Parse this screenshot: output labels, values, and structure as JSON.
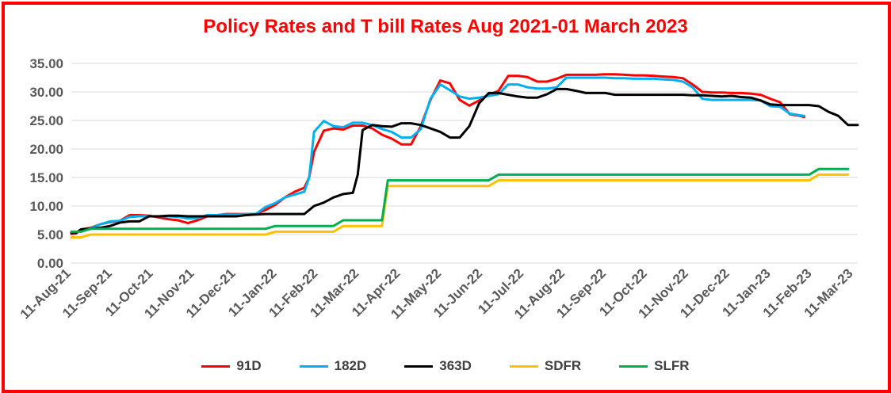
{
  "chart_data": {
    "type": "line",
    "title": "Policy Rates and T bill Rates Aug 2021-01 March 2023",
    "xlabel": "",
    "ylabel": "",
    "ylim": [
      0,
      35
    ],
    "yticks": [
      "0.00",
      "5.00",
      "10.00",
      "15.00",
      "20.00",
      "25.00",
      "30.00",
      "35.00"
    ],
    "grid": "horizontal",
    "legend_position": "bottom",
    "x_tick_labels": [
      "11-Aug-21",
      "11-Sep-21",
      "11-Oct-21",
      "11-Nov-21",
      "11-Dec-21",
      "11-Jan-22",
      "11-Feb-22",
      "11-Mar-22",
      "11-Apr-22",
      "11-May-22",
      "11-Jun-22",
      "11-Jul-22",
      "11-Aug-22",
      "11-Sep-22",
      "11-Oct-22",
      "11-Nov-22",
      "11-Dec-22",
      "11-Jan-23",
      "11-Feb-23",
      "11-Mar-23"
    ],
    "series": [
      {
        "name": "91D",
        "color": "#ff0000",
        "points": [
          [
            0,
            5.1
          ],
          [
            0.5,
            5.2
          ],
          [
            1,
            5.9
          ],
          [
            2,
            6.2
          ],
          [
            3,
            6.8
          ],
          [
            4,
            7.2
          ],
          [
            5,
            7.4
          ],
          [
            6,
            8.4
          ],
          [
            7,
            8.4
          ],
          [
            8,
            8.3
          ],
          [
            9,
            8.0
          ],
          [
            10,
            7.7
          ],
          [
            11,
            7.5
          ],
          [
            12,
            7.0
          ],
          [
            13,
            7.5
          ],
          [
            14,
            8.2
          ],
          [
            15,
            8.4
          ],
          [
            16,
            8.6
          ],
          [
            17,
            8.6
          ],
          [
            18,
            8.6
          ],
          [
            19,
            8.6
          ],
          [
            20,
            9.3
          ],
          [
            21,
            10.2
          ],
          [
            22,
            11.5
          ],
          [
            23,
            12.5
          ],
          [
            24,
            13.2
          ],
          [
            24.5,
            15.0
          ],
          [
            25,
            19.5
          ],
          [
            26,
            23.2
          ],
          [
            27,
            23.6
          ],
          [
            28,
            23.4
          ],
          [
            29,
            24.1
          ],
          [
            30,
            24.1
          ],
          [
            31,
            23.6
          ],
          [
            32,
            22.5
          ],
          [
            33,
            21.8
          ],
          [
            34,
            20.8
          ],
          [
            35,
            20.8
          ],
          [
            36,
            24.0
          ],
          [
            37,
            28.6
          ],
          [
            38,
            32.0
          ],
          [
            39,
            31.5
          ],
          [
            40,
            28.6
          ],
          [
            41,
            27.6
          ],
          [
            42,
            28.5
          ],
          [
            43,
            29.5
          ],
          [
            44,
            30.2
          ],
          [
            45,
            32.8
          ],
          [
            46,
            32.8
          ],
          [
            47,
            32.6
          ],
          [
            48,
            31.8
          ],
          [
            49,
            31.8
          ],
          [
            50,
            32.3
          ],
          [
            51,
            33.0
          ],
          [
            52,
            33.0
          ],
          [
            53,
            33.0
          ],
          [
            54,
            33.0
          ],
          [
            55,
            33.1
          ],
          [
            56,
            33.1
          ],
          [
            57,
            33.0
          ],
          [
            58,
            32.9
          ],
          [
            59,
            32.9
          ],
          [
            60,
            32.8
          ],
          [
            61,
            32.7
          ],
          [
            62,
            32.6
          ],
          [
            63,
            32.4
          ],
          [
            64,
            31.3
          ],
          [
            65,
            30.0
          ],
          [
            66,
            29.9
          ],
          [
            67,
            29.9
          ],
          [
            68,
            29.8
          ],
          [
            69,
            29.8
          ],
          [
            70,
            29.7
          ],
          [
            71,
            29.5
          ],
          [
            72,
            28.8
          ],
          [
            73,
            28.2
          ],
          [
            74,
            26.1
          ],
          [
            75,
            25.8
          ],
          [
            75.5,
            25.6
          ]
        ]
      },
      {
        "name": "182D",
        "color": "#00b0f0",
        "points": [
          [
            0,
            5.3
          ],
          [
            0.5,
            5.3
          ],
          [
            1,
            5.9
          ],
          [
            2,
            6.1
          ],
          [
            3,
            6.8
          ],
          [
            4,
            7.3
          ],
          [
            5,
            7.4
          ],
          [
            6,
            8.1
          ],
          [
            7,
            8.2
          ],
          [
            8,
            8.2
          ],
          [
            9,
            8.2
          ],
          [
            10,
            8.2
          ],
          [
            11,
            8.1
          ],
          [
            12,
            7.8
          ],
          [
            13,
            7.9
          ],
          [
            14,
            8.4
          ],
          [
            15,
            8.4
          ],
          [
            16,
            8.5
          ],
          [
            17,
            8.5
          ],
          [
            18,
            8.6
          ],
          [
            19,
            8.6
          ],
          [
            20,
            9.8
          ],
          [
            21,
            10.5
          ],
          [
            22,
            11.5
          ],
          [
            23,
            12.0
          ],
          [
            24,
            12.5
          ],
          [
            24.5,
            15.0
          ],
          [
            25,
            23.0
          ],
          [
            26,
            24.9
          ],
          [
            27,
            24.0
          ],
          [
            28,
            23.8
          ],
          [
            29,
            24.6
          ],
          [
            30,
            24.6
          ],
          [
            31,
            24.2
          ],
          [
            32,
            23.5
          ],
          [
            33,
            23.0
          ],
          [
            34,
            22.0
          ],
          [
            35,
            22.0
          ],
          [
            36,
            23.5
          ],
          [
            37,
            28.8
          ],
          [
            38,
            31.3
          ],
          [
            39,
            30.3
          ],
          [
            40,
            29.2
          ],
          [
            41,
            28.8
          ],
          [
            42,
            29.0
          ],
          [
            43,
            29.3
          ],
          [
            44,
            29.6
          ],
          [
            45,
            31.3
          ],
          [
            46,
            31.3
          ],
          [
            47,
            30.8
          ],
          [
            48,
            30.6
          ],
          [
            49,
            30.6
          ],
          [
            50,
            30.8
          ],
          [
            51,
            32.5
          ],
          [
            52,
            32.5
          ],
          [
            53,
            32.5
          ],
          [
            54,
            32.5
          ],
          [
            55,
            32.5
          ],
          [
            56,
            32.4
          ],
          [
            57,
            32.4
          ],
          [
            58,
            32.3
          ],
          [
            59,
            32.3
          ],
          [
            60,
            32.3
          ],
          [
            61,
            32.2
          ],
          [
            62,
            32.1
          ],
          [
            63,
            31.8
          ],
          [
            64,
            30.8
          ],
          [
            65,
            28.8
          ],
          [
            66,
            28.6
          ],
          [
            67,
            28.6
          ],
          [
            68,
            28.6
          ],
          [
            69,
            28.6
          ],
          [
            70,
            28.6
          ],
          [
            71,
            28.5
          ],
          [
            72,
            27.5
          ],
          [
            73,
            27.4
          ],
          [
            74,
            26.2
          ],
          [
            75,
            25.9
          ],
          [
            75.5,
            25.8
          ]
        ]
      },
      {
        "name": "363D",
        "color": "#000000",
        "points": [
          [
            0,
            5.3
          ],
          [
            0.5,
            5.3
          ],
          [
            1,
            5.9
          ],
          [
            2,
            6.0
          ],
          [
            3,
            6.2
          ],
          [
            4,
            6.5
          ],
          [
            5,
            7.1
          ],
          [
            6,
            7.3
          ],
          [
            7,
            7.3
          ],
          [
            8,
            8.2
          ],
          [
            9,
            8.2
          ],
          [
            10,
            8.3
          ],
          [
            11,
            8.3
          ],
          [
            12,
            8.2
          ],
          [
            13,
            8.2
          ],
          [
            14,
            8.2
          ],
          [
            15,
            8.2
          ],
          [
            16,
            8.2
          ],
          [
            17,
            8.2
          ],
          [
            18,
            8.4
          ],
          [
            19,
            8.5
          ],
          [
            20,
            8.6
          ],
          [
            21,
            8.6
          ],
          [
            22,
            8.6
          ],
          [
            23,
            8.6
          ],
          [
            24,
            8.6
          ],
          [
            25,
            10.0
          ],
          [
            26,
            10.6
          ],
          [
            27,
            11.5
          ],
          [
            28,
            12.1
          ],
          [
            29,
            12.3
          ],
          [
            29.5,
            15.5
          ],
          [
            30,
            23.3
          ],
          [
            31,
            24.2
          ],
          [
            32,
            24.0
          ],
          [
            33,
            23.9
          ],
          [
            34,
            24.5
          ],
          [
            35,
            24.5
          ],
          [
            36,
            24.2
          ],
          [
            37,
            23.6
          ],
          [
            38,
            23.0
          ],
          [
            39,
            22.0
          ],
          [
            40,
            22.0
          ],
          [
            41,
            24.0
          ],
          [
            42,
            28.0
          ],
          [
            43,
            29.8
          ],
          [
            44,
            29.8
          ],
          [
            45,
            29.5
          ],
          [
            46,
            29.2
          ],
          [
            47,
            29.0
          ],
          [
            48,
            29.0
          ],
          [
            49,
            29.6
          ],
          [
            50,
            30.5
          ],
          [
            51,
            30.5
          ],
          [
            52,
            30.2
          ],
          [
            53,
            29.8
          ],
          [
            54,
            29.8
          ],
          [
            55,
            29.8
          ],
          [
            56,
            29.5
          ],
          [
            57,
            29.5
          ],
          [
            58,
            29.5
          ],
          [
            59,
            29.5
          ],
          [
            60,
            29.5
          ],
          [
            61,
            29.5
          ],
          [
            62,
            29.5
          ],
          [
            63,
            29.5
          ],
          [
            64,
            29.4
          ],
          [
            65,
            29.4
          ],
          [
            66,
            29.3
          ],
          [
            67,
            29.2
          ],
          [
            68,
            29.3
          ],
          [
            69,
            29.1
          ],
          [
            70,
            29.0
          ],
          [
            71,
            28.5
          ],
          [
            72,
            27.8
          ],
          [
            73,
            27.7
          ],
          [
            74,
            27.7
          ],
          [
            75,
            27.7
          ],
          [
            76,
            27.7
          ],
          [
            77,
            27.5
          ],
          [
            78,
            26.5
          ],
          [
            79,
            25.8
          ],
          [
            80,
            24.2
          ],
          [
            81,
            24.2
          ]
        ]
      },
      {
        "name": "SDFR",
        "color": "#ffc000",
        "points": [
          [
            0,
            4.5
          ],
          [
            1,
            4.5
          ],
          [
            2,
            5.0
          ],
          [
            20,
            5.0
          ],
          [
            21,
            5.5
          ],
          [
            27,
            5.5
          ],
          [
            28,
            6.5
          ],
          [
            32,
            6.5
          ],
          [
            32.6,
            13.5
          ],
          [
            43,
            13.5
          ],
          [
            44,
            14.5
          ],
          [
            76,
            14.5
          ],
          [
            77,
            15.5
          ],
          [
            80,
            15.5
          ]
        ]
      },
      {
        "name": "SLFR",
        "color": "#00b050",
        "points": [
          [
            0,
            5.5
          ],
          [
            1,
            5.5
          ],
          [
            2,
            6.0
          ],
          [
            20,
            6.0
          ],
          [
            21,
            6.5
          ],
          [
            27,
            6.5
          ],
          [
            28,
            7.5
          ],
          [
            32,
            7.5
          ],
          [
            32.6,
            14.5
          ],
          [
            43,
            14.5
          ],
          [
            44,
            15.5
          ],
          [
            76,
            15.5
          ],
          [
            77,
            16.5
          ],
          [
            80,
            16.5
          ]
        ]
      }
    ]
  }
}
